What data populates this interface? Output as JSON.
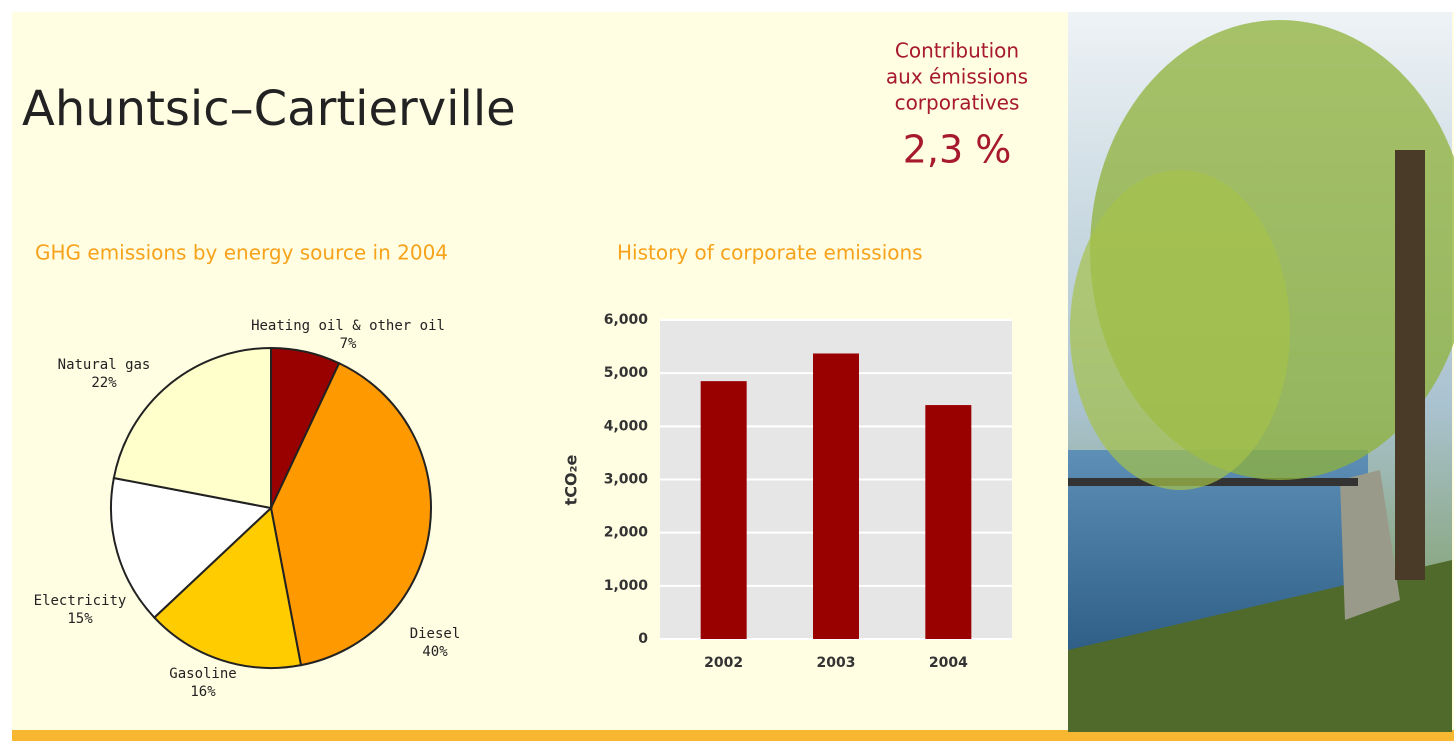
{
  "title": "Ahuntsic–Cartierville",
  "contribution": {
    "lines": [
      "Contribution",
      "aux émissions",
      "corporatives"
    ],
    "value": "2,3 %"
  },
  "chart_data": [
    {
      "type": "pie",
      "title": "GHG emissions by energy source in 2004",
      "categories": [
        "Heating oil & other oil",
        "Diesel",
        "Gasoline",
        "Electricity",
        "Natural gas"
      ],
      "values": [
        7,
        40,
        16,
        15,
        22
      ],
      "value_labels": [
        "7%",
        "40%",
        "16%",
        "15%",
        "22%"
      ],
      "colors": [
        "#990000",
        "#ff9900",
        "#ffcc00",
        "#ffffff",
        "#ffffcc"
      ]
    },
    {
      "type": "bar",
      "title": "History of corporate emissions",
      "y_label": "tCO₂e",
      "categories": [
        "2002",
        "2003",
        "2004"
      ],
      "values": [
        4850,
        5370,
        4400
      ],
      "color": "#990000",
      "ylim": [
        0,
        6000
      ],
      "yticks": [
        0,
        {
          "value": 1000,
          "label": "1,000"
        },
        {
          "value": 2000,
          "label": "2,000"
        },
        {
          "value": 3000,
          "label": "3,000"
        },
        {
          "value": 4000,
          "label": "4,000"
        },
        {
          "value": 5000,
          "label": "5,000"
        },
        {
          "value": 6000,
          "label": "6,000"
        }
      ],
      "grid": true
    }
  ]
}
